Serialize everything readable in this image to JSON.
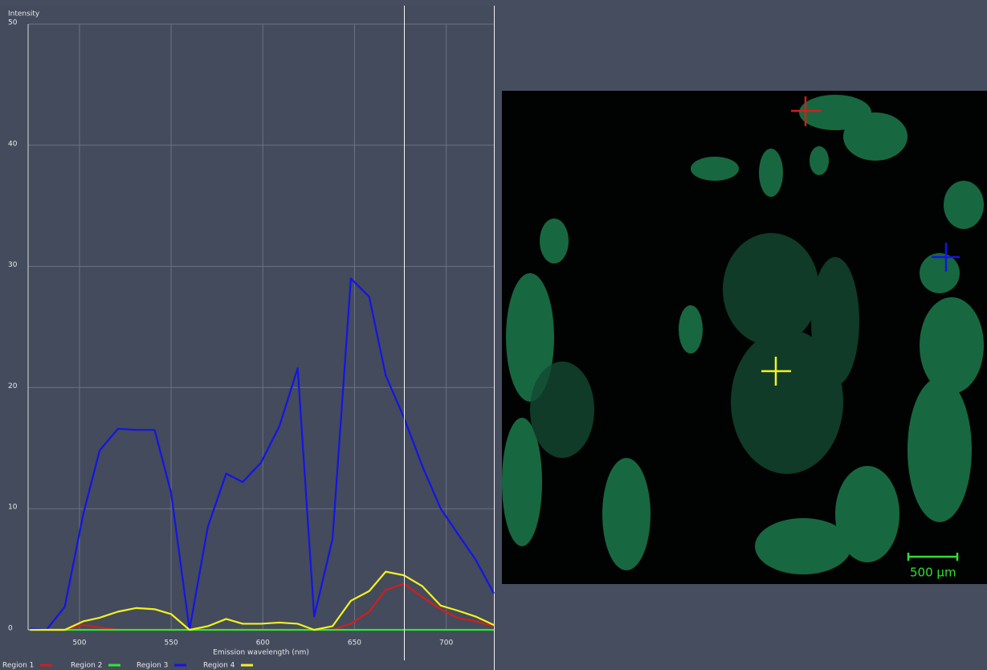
{
  "chart_data": {
    "type": "line",
    "y_label": "Intensity",
    "x_label": "Emission wavelength (nm)",
    "x": [
      473,
      482,
      492,
      502,
      511,
      521,
      531,
      541,
      550,
      560,
      570,
      580,
      589,
      599,
      609,
      619,
      628,
      638,
      648,
      658,
      667,
      677,
      687,
      697,
      706,
      716,
      726
    ],
    "series": [
      {
        "name": "Region 1",
        "color": "#d21e1e",
        "values": [
          0,
          0,
          0,
          0.4,
          0.2,
          0,
          0,
          0,
          0,
          0,
          0,
          0,
          0,
          0,
          0,
          0,
          0,
          0,
          0.5,
          1.5,
          3.3,
          3.8,
          2.7,
          1.7,
          1,
          0.7,
          0.3
        ]
      },
      {
        "name": "Region 2",
        "color": "#2ee82e",
        "values": [
          0,
          0,
          0,
          0,
          0,
          0,
          0,
          0,
          0,
          0,
          0,
          0,
          0,
          0,
          0,
          0,
          0,
          0,
          0,
          0,
          0,
          0,
          0,
          0,
          0,
          0,
          0
        ]
      },
      {
        "name": "Region 3",
        "color": "#1414e6",
        "values": [
          0.1,
          0,
          1.9,
          9.5,
          14.8,
          16.6,
          16.5,
          16.5,
          11.3,
          0,
          8.5,
          12.9,
          12.2,
          13.8,
          16.8,
          21.6,
          1.1,
          7.5,
          29,
          27.5,
          21,
          17.5,
          13.5,
          10,
          8,
          5.8,
          3
        ]
      },
      {
        "name": "Region 4",
        "color": "#f2f21e",
        "values": [
          0,
          0,
          0,
          0.7,
          1,
          1.5,
          1.8,
          1.7,
          1.3,
          0,
          0.3,
          0.9,
          0.5,
          0.5,
          0.6,
          0.5,
          0,
          0.3,
          2.4,
          3.2,
          4.8,
          4.5,
          3.6,
          2,
          1.6,
          1.1,
          0.4
        ]
      }
    ],
    "xlim": [
      472,
      726
    ],
    "ylim": [
      0,
      50
    ],
    "xticks": [
      500,
      550,
      600,
      650,
      700
    ],
    "yticks": [
      0,
      10,
      20,
      30,
      40,
      50
    ],
    "grid": true
  },
  "image": {
    "scale_bar": "500 µm"
  }
}
